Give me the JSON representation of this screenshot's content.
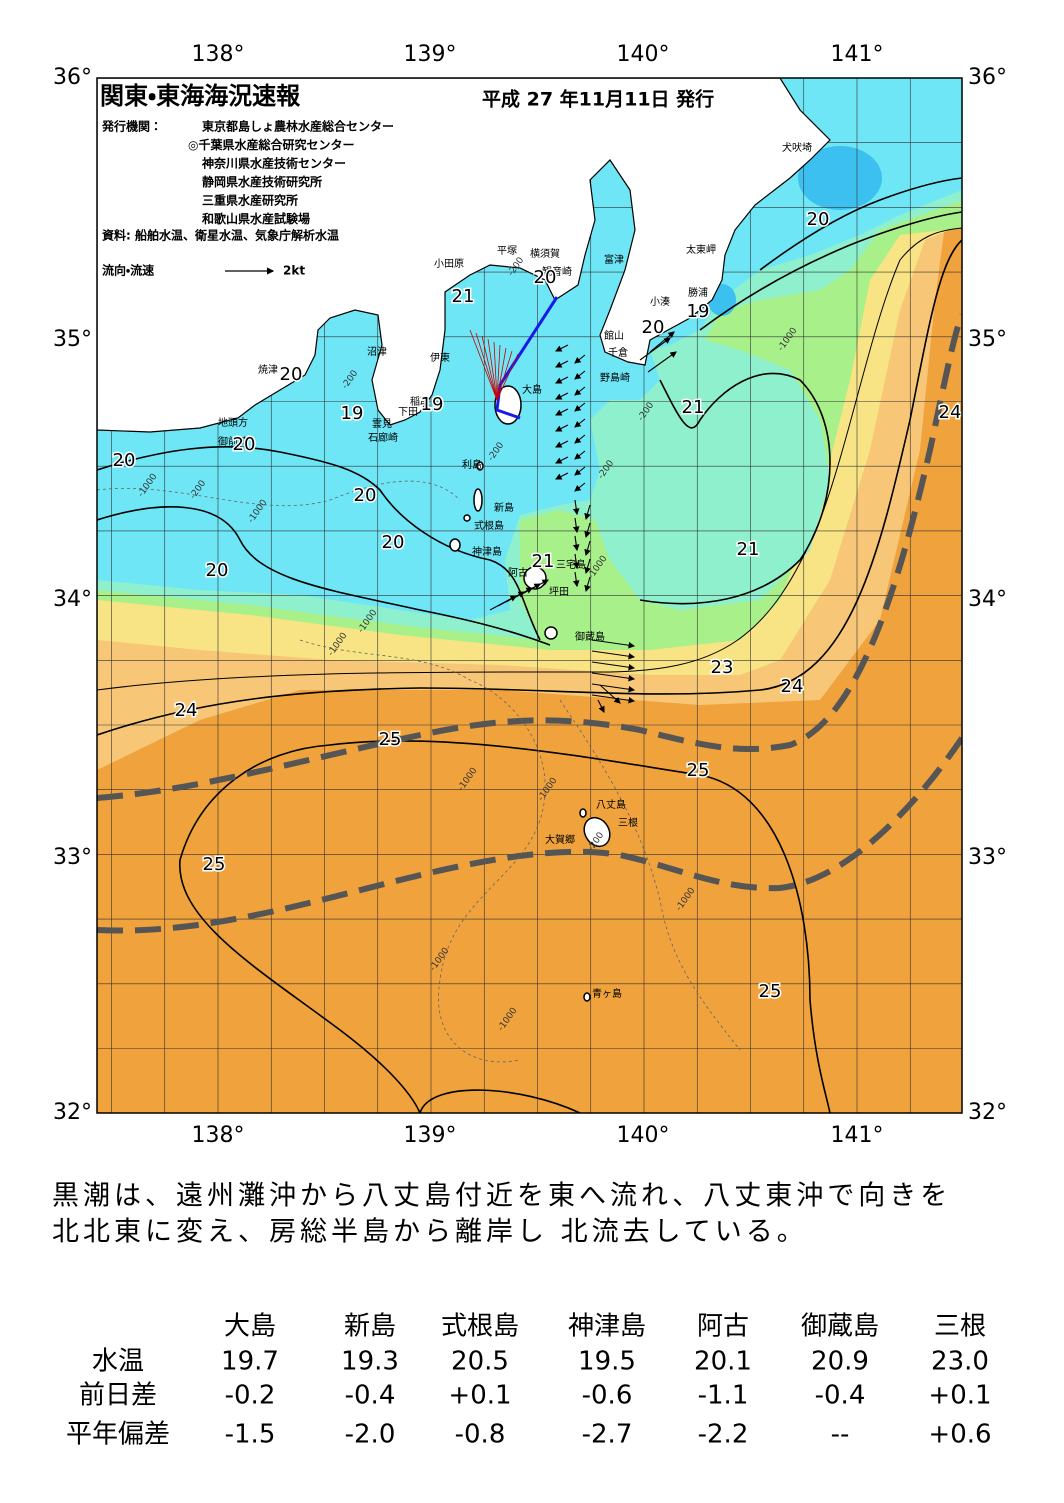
{
  "header": {
    "title": "関東・東海海況速報",
    "date": "平成 27 年11月11日 発行",
    "issuer_label": "発行機関：",
    "issuers": [
      "東京都島しょ農林水産総合センター",
      "◎千葉県水産総合研究センター",
      "神奈川県水産技術センター",
      "静岡県水産技術研究所",
      "三重県水産研究所",
      "和歌山県水産試験場"
    ],
    "source": "資料: 船舶水温、衛星水温、気象庁解析水温",
    "legend_label": "流向・流速",
    "legend_speed": "2kt"
  },
  "map": {
    "longitude_labels": [
      "138°",
      "139°",
      "140°",
      "141°"
    ],
    "latitude_labels": [
      "36°",
      "35°",
      "34°",
      "33°",
      "32°"
    ],
    "places": [
      "犬吠埼",
      "太東岬",
      "勝浦",
      "小湊",
      "館山",
      "千倉",
      "野島崎",
      "富津",
      "横須賀",
      "観音崎",
      "平塚",
      "小田原",
      "沼津",
      "伊東",
      "稲取",
      "下田",
      "雲見",
      "石廊崎",
      "焼津",
      "地頭方",
      "御前崎",
      "大島",
      "利島",
      "新島",
      "式根島",
      "神津島",
      "三宅島",
      "阿古",
      "坪田",
      "御蔵島",
      "八丈島",
      "三根",
      "大賀郷",
      "青ヶ島"
    ],
    "isotherm_labels": [
      "20",
      "19",
      "20",
      "21",
      "20",
      "20",
      "19",
      "19",
      "20",
      "20",
      "20",
      "20",
      "20",
      "21",
      "21",
      "21",
      "23",
      "24",
      "24",
      "25",
      "25",
      "25",
      "25",
      "24"
    ],
    "depth_labels": [
      "-200",
      "-200",
      "-200",
      "-1000",
      "-1000",
      "-200",
      "-1000",
      "-200",
      "-1000",
      "-1000",
      "-1000",
      "-1000",
      "-200",
      "-1000",
      "-1000",
      "-1000",
      "-1000",
      "-200"
    ]
  },
  "summary": [
    "黒潮は、遠州灘沖から八丈島付近を東へ流れ、八丈東沖で向きを",
    "北北東に変え、房総半島から離岸し 北流去している。"
  ],
  "table": {
    "columns": [
      "大島",
      "新島",
      "式根島",
      "神津島",
      "阿古",
      "御蔵島",
      "三根"
    ],
    "rows": [
      {
        "label": "水温",
        "cells": [
          "19.7",
          "19.3",
          "20.5",
          "19.5",
          "20.1",
          "20.9",
          "23.0"
        ]
      },
      {
        "label": "前日差",
        "cells": [
          "-0.2",
          "-0.4",
          "+0.1",
          "-0.6",
          "-1.1",
          "-0.4",
          "+0.1"
        ]
      },
      {
        "label": "平年偏差",
        "cells": [
          "-1.5",
          "-2.0",
          "-0.8",
          "-2.7",
          "-2.2",
          "--",
          "+0.6"
        ]
      }
    ]
  }
}
